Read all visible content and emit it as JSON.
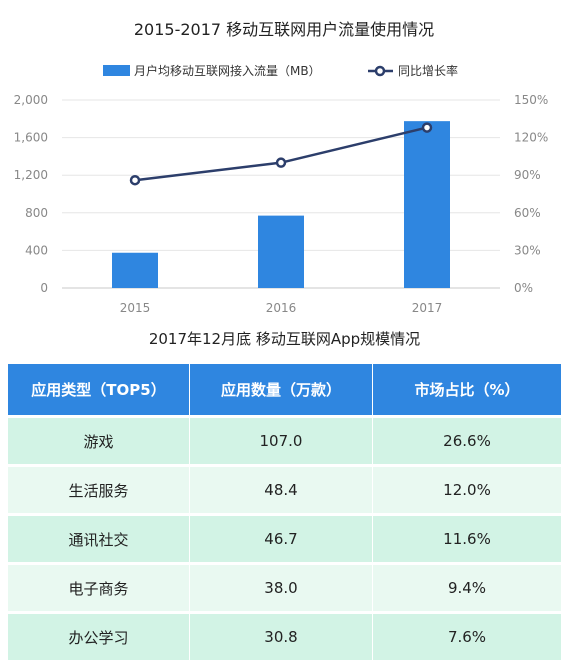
{
  "chart_data": {
    "type": "bar",
    "title": "2015-2017 移动互联网用户流量使用情况",
    "categories": [
      "2015",
      "2016",
      "2017"
    ],
    "series": [
      {
        "name": "月户均移动互联网接入流量（MB）",
        "type": "bar",
        "axis": "left",
        "values": [
          375,
          770,
          1775
        ],
        "color": "#2f86e0"
      },
      {
        "name": "同比增长率",
        "type": "line",
        "axis": "right",
        "values": [
          86,
          100,
          128
        ],
        "unit": "%",
        "color": "#2c3e6b"
      }
    ],
    "yleft": {
      "ticks": [
        "2,000",
        "1,600",
        "1,200",
        "800",
        "400",
        "0"
      ],
      "range": [
        0,
        2000
      ]
    },
    "yright": {
      "ticks": [
        "150%",
        "120%",
        "90%",
        "60%",
        "30%",
        "0%"
      ],
      "range": [
        0,
        150
      ]
    },
    "grid": true,
    "legend_position": "top"
  },
  "table": {
    "title": "2017年12月底 移动互联网App规模情况",
    "headers": [
      "应用类型（TOP5）",
      "应用数量（万款）",
      "市场占比（%）"
    ],
    "rows": [
      [
        "游戏",
        "107.0",
        "26.6%"
      ],
      [
        "生活服务",
        "48.4",
        "12.0%"
      ],
      [
        "通讯社交",
        "46.7",
        "11.6%"
      ],
      [
        "电子商务",
        "38.0",
        "9.4%"
      ],
      [
        "办公学习",
        "30.8",
        "7.6%"
      ]
    ]
  }
}
